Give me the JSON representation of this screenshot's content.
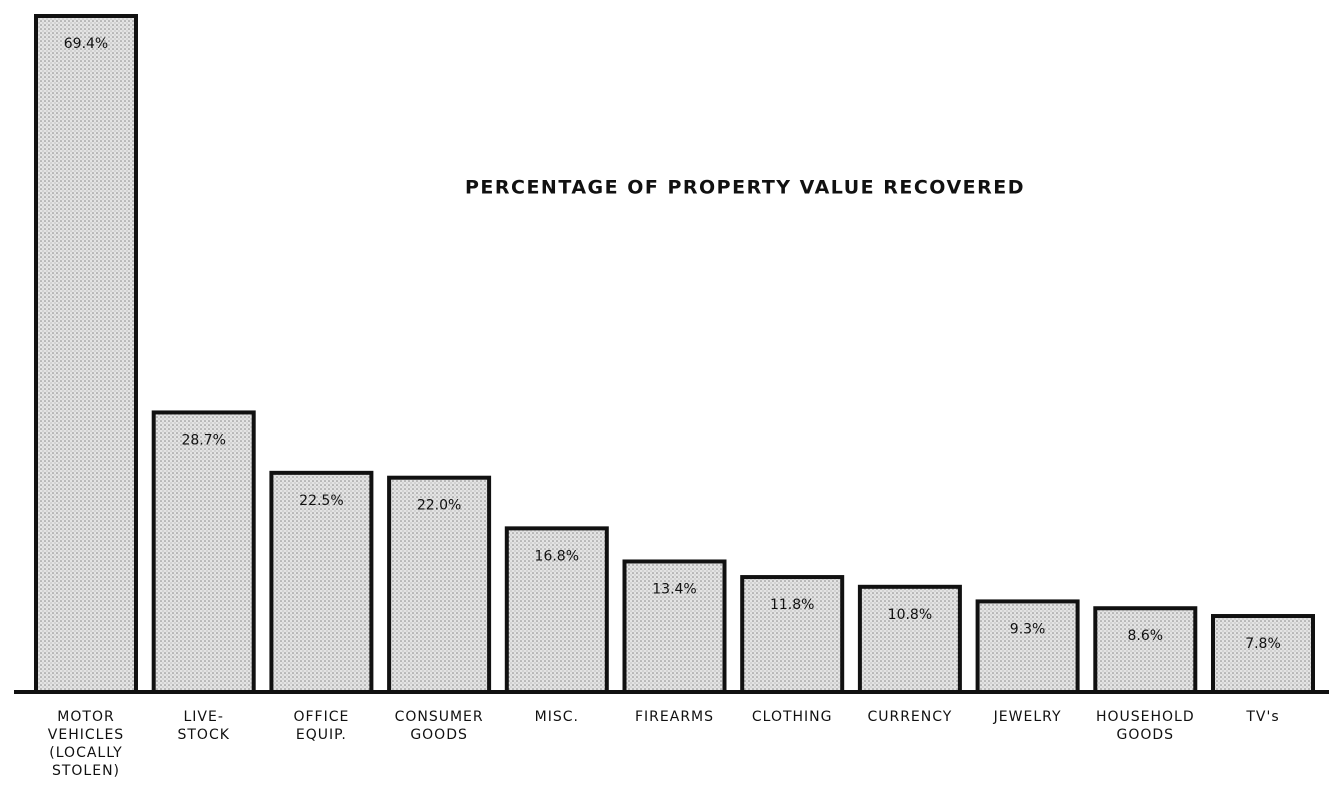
{
  "chart_data": {
    "type": "bar",
    "title": "PERCENTAGE OF PROPERTY VALUE RECOVERED",
    "categories": [
      [
        "MOTOR",
        "VEHICLES",
        "(LOCALLY",
        "STOLEN)"
      ],
      [
        "LIVE-",
        "STOCK"
      ],
      [
        "OFFICE",
        "EQUIP."
      ],
      [
        "CONSUMER",
        "GOODS"
      ],
      [
        "MISC."
      ],
      [
        "FIREARMS"
      ],
      [
        "CLOTHING"
      ],
      [
        "CURRENCY"
      ],
      [
        "JEWELRY"
      ],
      [
        "HOUSEHOLD",
        "GOODS"
      ],
      [
        "TV's"
      ]
    ],
    "values": [
      69.4,
      28.7,
      22.5,
      22.0,
      16.8,
      13.4,
      11.8,
      10.8,
      9.3,
      8.6,
      7.8
    ],
    "value_labels": [
      "69.4%",
      "28.7%",
      "22.5%",
      "22.0%",
      "16.8%",
      "13.4%",
      "11.8%",
      "10.8%",
      "9.3%",
      "8.6%",
      "7.8%"
    ],
    "color": "#d9d9d9"
  }
}
